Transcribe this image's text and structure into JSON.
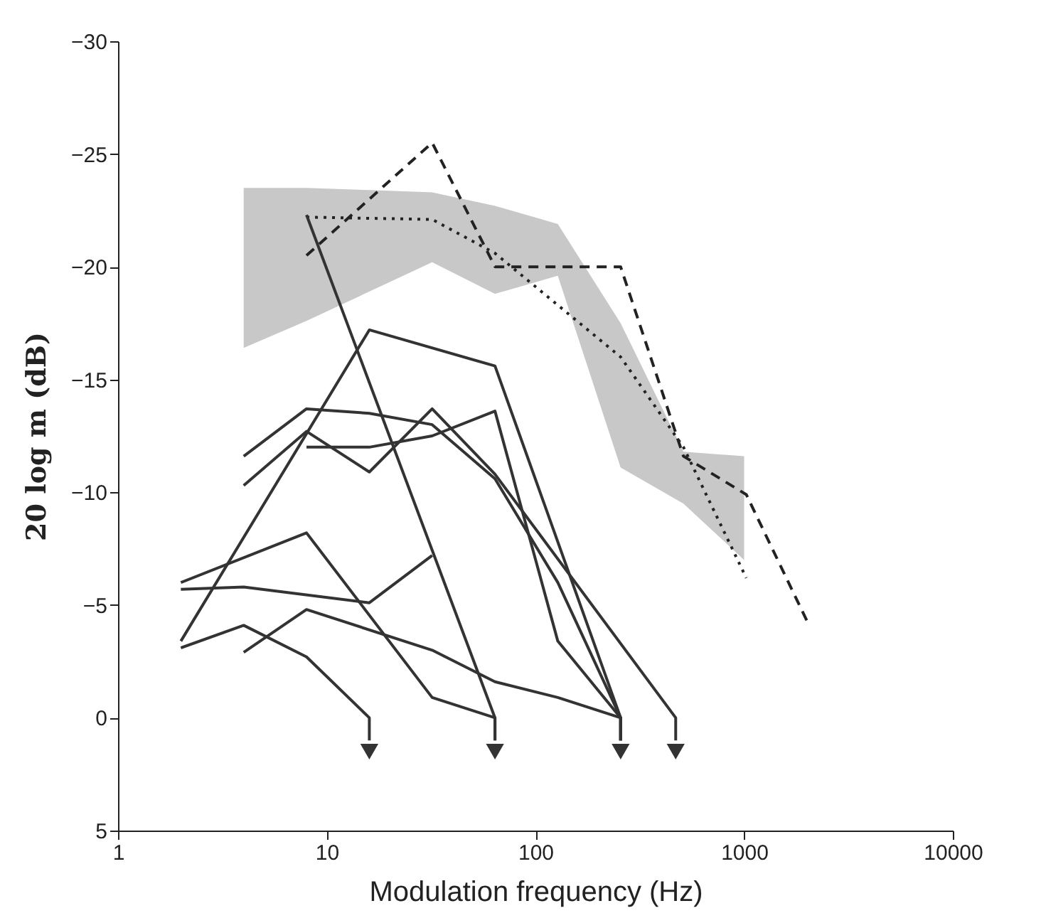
{
  "chart_data": {
    "type": "line",
    "xlabel": "Modulation frequency (Hz)",
    "ylabel": "20 log m (dB)",
    "log": "x",
    "xlim": [
      1,
      10000
    ],
    "xticks": [
      1,
      10,
      100,
      1000,
      10000
    ],
    "ylim": [
      5,
      -30
    ],
    "yticks": [
      -30,
      -25,
      -20,
      -15,
      -10,
      -5,
      0,
      5
    ],
    "grid": false,
    "series": [
      {
        "type": "area",
        "color": "#c8c8c8",
        "x": [
          4,
          8,
          16,
          32,
          64,
          128,
          256,
          512,
          1000
        ],
        "values": [
          null,
          null,
          null,
          null,
          null,
          null,
          null,
          null,
          null
        ],
        "lower": [
          -23.5,
          -23.5,
          -23.4,
          -23.3,
          -22.7,
          -21.9,
          -17.5,
          -11.8,
          -11.6
        ],
        "upper": [
          -16.4,
          -17.6,
          -18.9,
          -20.2,
          -18.8,
          -19.6,
          -11.1,
          -9.5,
          -7.0
        ]
      },
      {
        "type": "line",
        "color": "#222222",
        "line_style": "dashed",
        "x": [
          8,
          32,
          64,
          128,
          256,
          512,
          1024,
          2048
        ],
        "values": [
          -20.5,
          -25.5,
          -20.0,
          -20.0,
          -20.0,
          -11.6,
          -9.9,
          -4.1
        ]
      },
      {
        "type": "line",
        "color": "#222222",
        "line_style": "dotted",
        "x": [
          8,
          32,
          64,
          128,
          256,
          512,
          1024
        ],
        "values": [
          -22.2,
          -22.1,
          -20.6,
          -18.3,
          -16.0,
          -12.0,
          -6.2
        ]
      },
      {
        "type": "line",
        "color": "#333333",
        "line_style": "solid",
        "x": [
          8,
          64,
          64
        ],
        "values": [
          -22.3,
          0,
          1.0
        ]
      },
      {
        "type": "line",
        "color": "#333333",
        "line_style": "solid",
        "x": [
          2,
          16,
          64,
          256,
          256
        ],
        "values": [
          -3.4,
          -17.2,
          -15.6,
          0,
          1.0
        ]
      },
      {
        "type": "line",
        "color": "#333333",
        "line_style": "solid",
        "x": [
          4,
          8,
          16,
          32,
          64,
          128,
          256,
          256
        ],
        "values": [
          -11.6,
          -13.7,
          -13.5,
          -13.0,
          -10.6,
          -6.0,
          0,
          1.0
        ]
      },
      {
        "type": "line",
        "color": "#333333",
        "line_style": "solid",
        "x": [
          4,
          8,
          16,
          32,
          64,
          470,
          470
        ],
        "values": [
          -10.3,
          -12.7,
          -10.9,
          -13.7,
          -10.8,
          0,
          1.0
        ]
      },
      {
        "type": "line",
        "color": "#333333",
        "line_style": "solid",
        "x": [
          8,
          16,
          32,
          64,
          128,
          256,
          256
        ],
        "values": [
          -12.0,
          -12.0,
          -12.5,
          -13.6,
          -3.4,
          0,
          1.0
        ]
      },
      {
        "type": "line",
        "color": "#333333",
        "line_style": "solid",
        "x": [
          2,
          8,
          32,
          64,
          64
        ],
        "values": [
          -6.0,
          -8.2,
          -0.9,
          0,
          1.0
        ]
      },
      {
        "type": "line",
        "color": "#333333",
        "line_style": "solid",
        "x": [
          2,
          4,
          16,
          32
        ],
        "values": [
          -5.7,
          -5.8,
          -5.1,
          -7.2
        ]
      },
      {
        "type": "line",
        "color": "#333333",
        "line_style": "solid",
        "x": [
          2,
          4,
          8,
          16,
          16
        ],
        "values": [
          -3.1,
          -4.1,
          -2.7,
          0,
          1.0
        ]
      },
      {
        "type": "line",
        "color": "#333333",
        "line_style": "solid",
        "x": [
          4,
          8,
          32,
          64,
          128,
          256,
          256
        ],
        "values": [
          -2.9,
          -4.8,
          -3.0,
          -1.6,
          -0.9,
          0,
          1.0
        ]
      },
      {
        "type": "scatter",
        "color": "#333333",
        "marker": "triangle",
        "x": [
          16,
          64,
          256,
          470
        ],
        "values": [
          1.5,
          1.5,
          1.5,
          1.5
        ]
      }
    ]
  }
}
